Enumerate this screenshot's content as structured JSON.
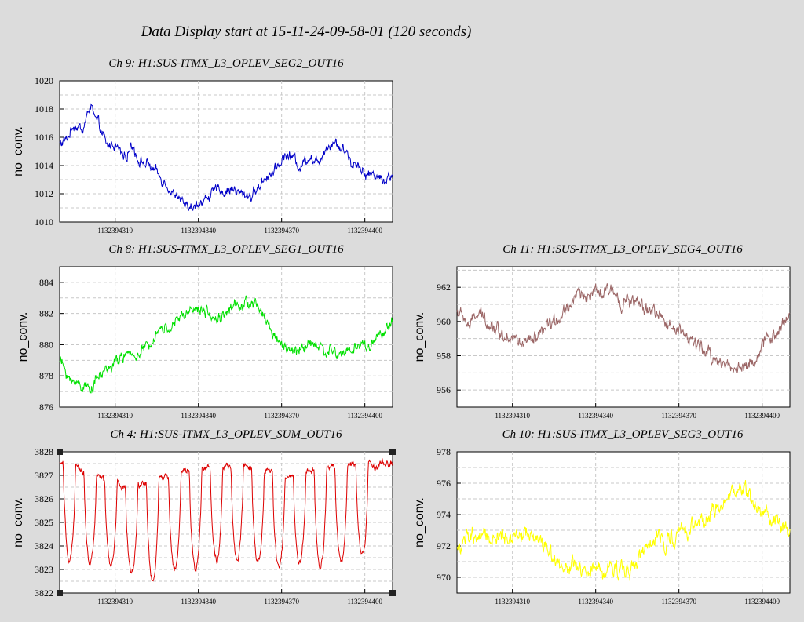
{
  "page_title": "Data Display start at 15-11-24-09-58-01 (120 seconds)",
  "chart_data": [
    {
      "type": "line",
      "title": "Ch 9: H1:SUS-ITMX_L3_OPLEV_SEG2_OUT16",
      "ylabel": "no_conv.",
      "color": "#0000c8",
      "ylim": [
        1010,
        1020
      ],
      "yticks": [
        1010,
        1012,
        1014,
        1016,
        1018,
        1020
      ],
      "xlim": [
        1132394290,
        1132394410
      ],
      "xticks": [
        1132394310,
        1132394340,
        1132394370,
        1132394400
      ],
      "anchors": [
        [
          0,
          1015.6
        ],
        [
          3,
          1016.0
        ],
        [
          5,
          1016.8
        ],
        [
          8,
          1016.5
        ],
        [
          11,
          1018.2
        ],
        [
          14,
          1016.9
        ],
        [
          17,
          1015.3
        ],
        [
          20,
          1015.6
        ],
        [
          23,
          1014.8
        ],
        [
          26,
          1015.4
        ],
        [
          29,
          1014.4
        ],
        [
          33,
          1013.8
        ],
        [
          36,
          1013.0
        ],
        [
          39,
          1012.5
        ],
        [
          42,
          1011.6
        ],
        [
          45,
          1011.2
        ],
        [
          48,
          1010.9
        ],
        [
          51,
          1011.4
        ],
        [
          54,
          1011.9
        ],
        [
          57,
          1012.3
        ],
        [
          60,
          1012.0
        ],
        [
          63,
          1012.4
        ],
        [
          66,
          1012.0
        ],
        [
          69,
          1011.9
        ],
        [
          72,
          1012.5
        ],
        [
          75,
          1013.3
        ],
        [
          78,
          1014.0
        ],
        [
          81,
          1014.8
        ],
        [
          84,
          1014.6
        ],
        [
          87,
          1014.0
        ],
        [
          90,
          1014.7
        ],
        [
          93,
          1014.4
        ],
        [
          96,
          1015.3
        ],
        [
          99,
          1015.7
        ],
        [
          102,
          1015.2
        ],
        [
          105,
          1014.2
        ],
        [
          108,
          1014.1
        ],
        [
          111,
          1013.5
        ],
        [
          114,
          1013.3
        ],
        [
          117,
          1013.0
        ],
        [
          120,
          1013.1
        ]
      ],
      "noise": 0.55,
      "spikes": null
    },
    {
      "type": "line",
      "title": "Ch 8: H1:SUS-ITMX_L3_OPLEV_SEG1_OUT16",
      "ylabel": "no_conv.",
      "color": "#00e000",
      "ylim": [
        876,
        885
      ],
      "yticks": [
        876,
        878,
        880,
        882,
        884
      ],
      "xlim": [
        1132394290,
        1132394410
      ],
      "xticks": [
        1132394310,
        1132394340,
        1132394370,
        1132394400
      ],
      "anchors": [
        [
          0,
          879.0
        ],
        [
          4,
          877.6
        ],
        [
          8,
          877.5
        ],
        [
          12,
          877.4
        ],
        [
          16,
          878.2
        ],
        [
          20,
          878.8
        ],
        [
          24,
          879.2
        ],
        [
          28,
          879.4
        ],
        [
          32,
          879.8
        ],
        [
          36,
          880.6
        ],
        [
          40,
          881.2
        ],
        [
          44,
          881.6
        ],
        [
          48,
          882.3
        ],
        [
          52,
          882.1
        ],
        [
          56,
          881.6
        ],
        [
          60,
          882.0
        ],
        [
          64,
          882.4
        ],
        [
          68,
          882.6
        ],
        [
          72,
          882.3
        ],
        [
          76,
          881.0
        ],
        [
          80,
          880.0
        ],
        [
          84,
          879.6
        ],
        [
          88,
          880.0
        ],
        [
          92,
          880.2
        ],
        [
          96,
          879.7
        ],
        [
          100,
          879.4
        ],
        [
          104,
          879.4
        ],
        [
          108,
          879.8
        ],
        [
          112,
          880.0
        ],
        [
          116,
          880.6
        ],
        [
          120,
          881.4
        ]
      ],
      "noise": 0.55,
      "spikes": null
    },
    {
      "type": "line",
      "title": "Ch 11: H1:SUS-ITMX_L3_OPLEV_SEG4_OUT16",
      "ylabel": "no_conv.",
      "color": "#9b6666",
      "ylim": [
        955,
        963.2
      ],
      "yticks": [
        956,
        958,
        960,
        962
      ],
      "xlim": [
        1132394290,
        1132394410
      ],
      "xticks": [
        1132394310,
        1132394340,
        1132394370,
        1132394400
      ],
      "anchors": [
        [
          0,
          960.6
        ],
        [
          4,
          959.8
        ],
        [
          8,
          960.4
        ],
        [
          12,
          959.9
        ],
        [
          16,
          959.3
        ],
        [
          20,
          959.0
        ],
        [
          24,
          958.5
        ],
        [
          28,
          958.8
        ],
        [
          32,
          959.3
        ],
        [
          36,
          960.1
        ],
        [
          40,
          960.8
        ],
        [
          44,
          961.6
        ],
        [
          48,
          961.6
        ],
        [
          52,
          961.6
        ],
        [
          56,
          961.8
        ],
        [
          60,
          961.3
        ],
        [
          64,
          961.0
        ],
        [
          68,
          960.8
        ],
        [
          72,
          960.5
        ],
        [
          76,
          960.0
        ],
        [
          80,
          959.6
        ],
        [
          84,
          959.0
        ],
        [
          88,
          958.4
        ],
        [
          92,
          957.9
        ],
        [
          96,
          957.6
        ],
        [
          100,
          957.3
        ],
        [
          104,
          957.4
        ],
        [
          108,
          958.0
        ],
        [
          112,
          958.9
        ],
        [
          116,
          959.6
        ],
        [
          120,
          960.6
        ]
      ],
      "noise": 0.6,
      "spikes": null
    },
    {
      "type": "line",
      "title": "Ch 4: H1:SUS-ITMX_L3_OPLEV_SUM_OUT16",
      "ylabel": "no_conv.",
      "color": "#dd0000",
      "ylim": [
        3822,
        3828
      ],
      "yticks": [
        3822,
        3823,
        3824,
        3825,
        3826,
        3827,
        3828
      ],
      "xlim": [
        1132394290,
        1132394410
      ],
      "xticks": [
        1132394310,
        1132394340,
        1132394370,
        1132394400
      ],
      "anchors": [
        [
          0,
          3827.5
        ],
        [
          6,
          3827.3
        ],
        [
          12,
          3827.0
        ],
        [
          18,
          3826.7
        ],
        [
          24,
          3826.5
        ],
        [
          30,
          3826.7
        ],
        [
          36,
          3826.8
        ],
        [
          42,
          3827.0
        ],
        [
          48,
          3827.3
        ],
        [
          54,
          3827.4
        ],
        [
          60,
          3827.3
        ],
        [
          66,
          3827.4
        ],
        [
          72,
          3827.3
        ],
        [
          78,
          3827.0
        ],
        [
          84,
          3827.0
        ],
        [
          90,
          3827.2
        ],
        [
          96,
          3827.4
        ],
        [
          102,
          3827.6
        ],
        [
          108,
          3827.5
        ],
        [
          114,
          3827.4
        ],
        [
          120,
          3827.6
        ]
      ],
      "noise": 0.22,
      "spikes": {
        "times": [
          3.5,
          11,
          18.5,
          26,
          33.5,
          41.5,
          49,
          56.5,
          64,
          71.5,
          79,
          86.5,
          94,
          101.5,
          109
        ],
        "depths": [
          3823.4,
          3823.3,
          3823.2,
          3822.9,
          3822.5,
          3823.1,
          3823.0,
          3823.4,
          3823.4,
          3823.2,
          3823.1,
          3823.3,
          3823.2,
          3823.3,
          3823.5
        ],
        "width": 2.2
      }
    },
    {
      "type": "line",
      "title": "Ch 10: H1:SUS-ITMX_L3_OPLEV_SEG3_OUT16",
      "ylabel": "no_conv.",
      "color": "#ffff00",
      "ylim": [
        969,
        978
      ],
      "yticks": [
        970,
        972,
        974,
        976,
        978
      ],
      "xlim": [
        1132394290,
        1132394410
      ],
      "xticks": [
        1132394310,
        1132394340,
        1132394370,
        1132394400
      ],
      "anchors": [
        [
          0,
          972.0
        ],
        [
          4,
          972.4
        ],
        [
          8,
          972.3
        ],
        [
          12,
          972.2
        ],
        [
          16,
          972.6
        ],
        [
          20,
          972.8
        ],
        [
          24,
          973.1
        ],
        [
          28,
          972.6
        ],
        [
          32,
          972.1
        ],
        [
          36,
          971.0
        ],
        [
          40,
          970.7
        ],
        [
          44,
          970.3
        ],
        [
          48,
          970.3
        ],
        [
          52,
          970.5
        ],
        [
          56,
          970.8
        ],
        [
          60,
          970.7
        ],
        [
          64,
          971.0
        ],
        [
          68,
          971.6
        ],
        [
          72,
          972.3
        ],
        [
          76,
          972.6
        ],
        [
          80,
          972.8
        ],
        [
          84,
          972.9
        ],
        [
          88,
          973.3
        ],
        [
          92,
          974.0
        ],
        [
          96,
          974.6
        ],
        [
          100,
          975.6
        ],
        [
          104,
          975.5
        ],
        [
          108,
          974.6
        ],
        [
          112,
          973.9
        ],
        [
          116,
          973.4
        ],
        [
          120,
          972.8
        ]
      ],
      "noise": 0.8,
      "spikes": null
    }
  ]
}
